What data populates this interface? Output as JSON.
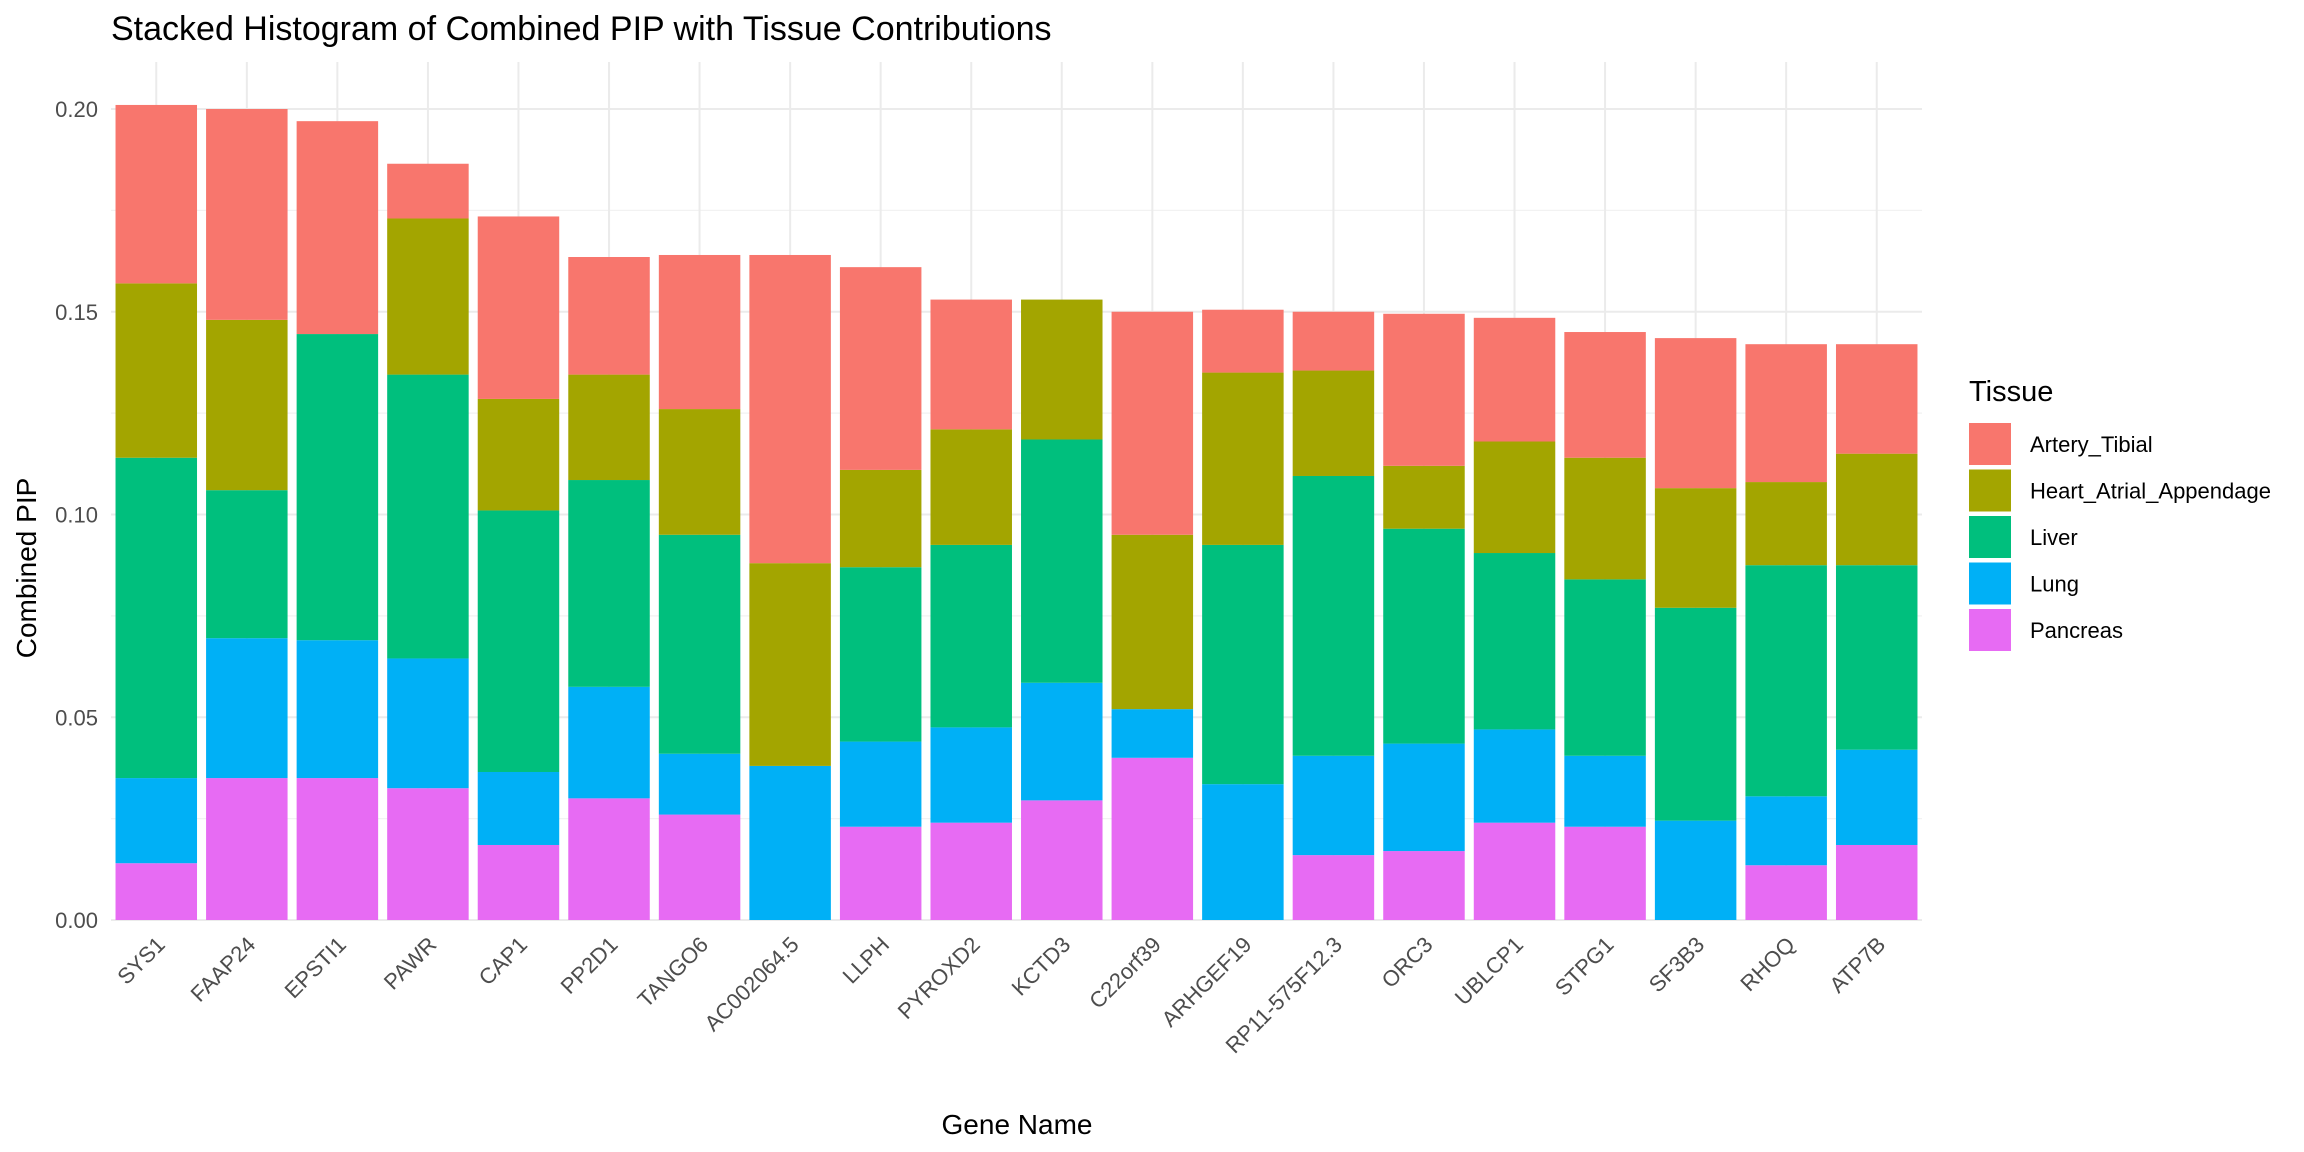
{
  "chart_data": {
    "type": "bar",
    "stacked": true,
    "title": "Stacked Histogram of Combined PIP with Tissue Contributions",
    "xlabel": "Gene Name",
    "ylabel": "Combined PIP",
    "ylim": [
      0,
      0.21
    ],
    "y_ticks": [
      "0.00",
      "0.05",
      "0.10",
      "0.15",
      "0.20"
    ],
    "grid": true,
    "legend_title": "Tissue",
    "legend_position": "right",
    "categories": [
      "SYS1",
      "FAAP24",
      "EPSTI1",
      "PAWR",
      "CAP1",
      "PP2D1",
      "TANGO6",
      "AC002064.5",
      "LLPH",
      "PYROXD2",
      "KCTD3",
      "C22orf39",
      "ARHGEF19",
      "RP11-575F12.3",
      "ORC3",
      "UBLCP1",
      "STPG1",
      "SF3B3",
      "RHOQ",
      "ATP7B"
    ],
    "series": [
      {
        "name": "Pancreas",
        "color": "#E76BF3",
        "values": [
          0.014,
          0.035,
          0.035,
          0.0325,
          0.0185,
          0.03,
          0.026,
          0.0,
          0.023,
          0.024,
          0.0295,
          0.04,
          0.0,
          0.016,
          0.017,
          0.024,
          0.023,
          0.0,
          0.0135,
          0.0185
        ]
      },
      {
        "name": "Lung",
        "color": "#00B0F6",
        "values": [
          0.021,
          0.0345,
          0.034,
          0.032,
          0.018,
          0.0275,
          0.015,
          0.038,
          0.021,
          0.0235,
          0.029,
          0.012,
          0.0335,
          0.0245,
          0.0265,
          0.023,
          0.0175,
          0.0245,
          0.017,
          0.0235
        ]
      },
      {
        "name": "Liver",
        "color": "#00BF7D",
        "values": [
          0.079,
          0.0365,
          0.0755,
          0.07,
          0.0645,
          0.051,
          0.054,
          0.0,
          0.043,
          0.045,
          0.06,
          0.0,
          0.059,
          0.069,
          0.053,
          0.0435,
          0.0435,
          0.0525,
          0.057,
          0.0455
        ]
      },
      {
        "name": "Heart_Atrial_Appendage",
        "color": "#A3A500",
        "values": [
          0.043,
          0.042,
          0.0,
          0.0385,
          0.0275,
          0.026,
          0.031,
          0.05,
          0.024,
          0.0285,
          0.0345,
          0.043,
          0.0425,
          0.026,
          0.0155,
          0.0275,
          0.03,
          0.0295,
          0.0205,
          0.0275
        ]
      },
      {
        "name": "Artery_Tibial",
        "color": "#F8766D",
        "values": [
          0.044,
          0.052,
          0.0525,
          0.0135,
          0.045,
          0.029,
          0.038,
          0.076,
          0.05,
          0.032,
          0.0,
          0.055,
          0.0155,
          0.0145,
          0.0375,
          0.0305,
          0.031,
          0.037,
          0.034,
          0.027
        ]
      }
    ],
    "legend_order": [
      "Artery_Tibial",
      "Heart_Atrial_Appendage",
      "Liver",
      "Lung",
      "Pancreas"
    ]
  }
}
